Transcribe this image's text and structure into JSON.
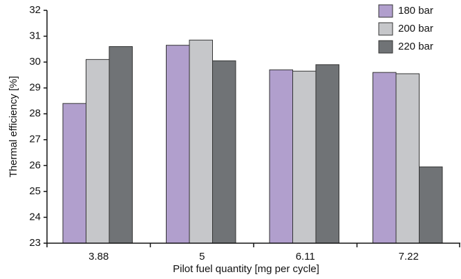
{
  "chart_data": {
    "type": "bar",
    "x_label": "Pilot fuel quantity [mg per cycle]",
    "y_label": "Thermal efficiency [%]",
    "categories": [
      "3.88",
      "5",
      "6.11",
      "7.22"
    ],
    "series": [
      {
        "name": "180 bar",
        "color": "#b19fcd",
        "values": [
          28.4,
          30.65,
          29.7,
          29.6
        ]
      },
      {
        "name": "200 bar",
        "color": "#c6c7ca",
        "values": [
          30.1,
          30.85,
          29.65,
          29.55
        ]
      },
      {
        "name": "220 bar",
        "color": "#707376",
        "values": [
          30.6,
          30.05,
          29.9,
          25.95
        ]
      }
    ],
    "ylim": [
      23,
      32
    ],
    "yticks": [
      23,
      24,
      25,
      26,
      27,
      28,
      29,
      30,
      31,
      32
    ],
    "legend": "top-right"
  }
}
